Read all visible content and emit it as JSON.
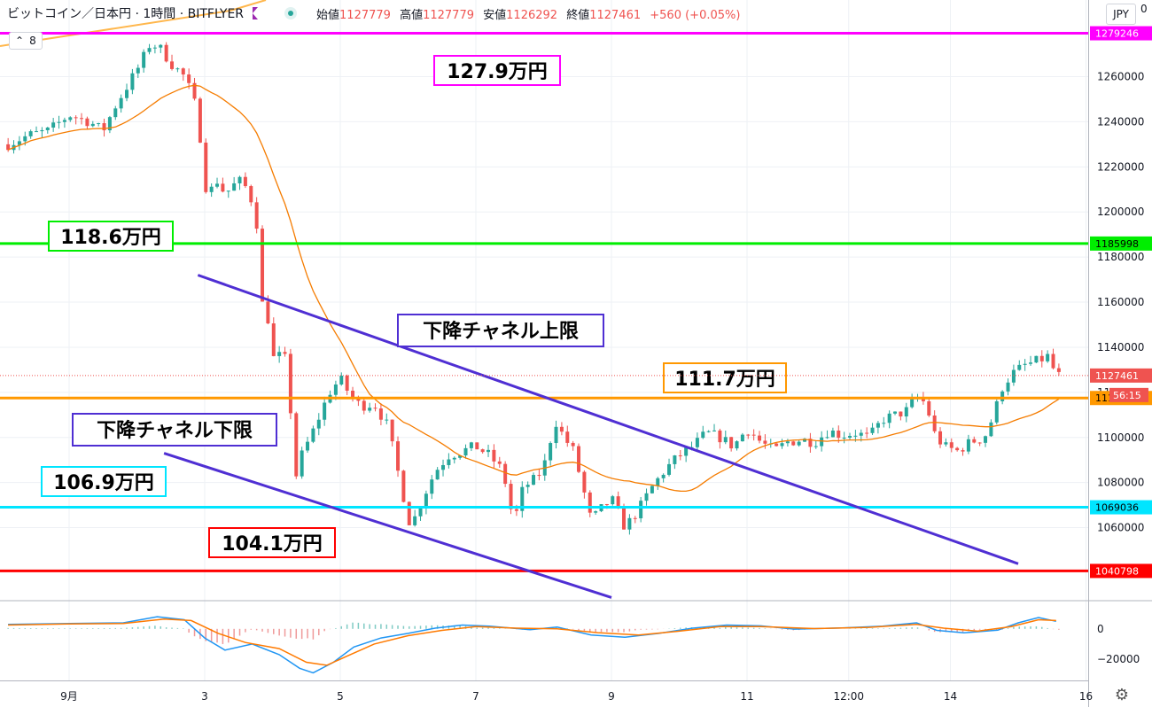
{
  "header": {
    "symbol": "ビットコイン／日本円 · 1時間 · BITFLYER",
    "ohlc": [
      {
        "label": "始値",
        "value": "1127779"
      },
      {
        "label": "高値",
        "value": "1127779"
      },
      {
        "label": "安値",
        "value": "1126292"
      },
      {
        "label": "終値",
        "value": "1127461"
      }
    ],
    "change": "+560 (+0.05%)",
    "indicator_value": "8",
    "currency": "JPY",
    "top_right": "0"
  },
  "colors": {
    "up": "#26a69a",
    "down": "#ef5350",
    "ma": "#f57c00",
    "channel": "#4f2fd3",
    "magenta": "#ff00ff",
    "green": "#00ee00",
    "orange": "#ff9800",
    "cyan": "#00e5ff",
    "red": "#ff0000",
    "macd": "#2196f3",
    "signal": "#ff7a00"
  },
  "chart_data": {
    "type": "candlestick",
    "title": "ビットコイン／日本円 · 1時間 · BITFLYER",
    "ylim": [
      1028000,
      1294000
    ],
    "y_ticks": [
      1060000,
      1080000,
      1100000,
      1120000,
      1140000,
      1160000,
      1180000,
      1200000,
      1220000,
      1240000,
      1260000
    ],
    "x_ticks": [
      {
        "label": "9月",
        "t": 0.0
      },
      {
        "label": "3",
        "t": 1.0
      },
      {
        "label": "5",
        "t": 2.0
      },
      {
        "label": "7",
        "t": 3.0
      },
      {
        "label": "9",
        "t": 4.0
      },
      {
        "label": "11",
        "t": 5.0
      },
      {
        "label": "12:00",
        "t": 5.75
      },
      {
        "label": "14",
        "t": 6.5
      },
      {
        "label": "16",
        "t": 7.5
      }
    ],
    "close_path": [
      [
        -0.45,
        1230000
      ],
      [
        -0.3,
        1234000
      ],
      [
        -0.15,
        1236000
      ],
      [
        0.0,
        1243000
      ],
      [
        0.15,
        1240000
      ],
      [
        0.25,
        1236000
      ],
      [
        0.35,
        1248000
      ],
      [
        0.45,
        1258000
      ],
      [
        0.52,
        1265000
      ],
      [
        0.6,
        1275000
      ],
      [
        0.68,
        1272000
      ],
      [
        0.75,
        1266000
      ],
      [
        0.85,
        1260000
      ],
      [
        0.92,
        1250000
      ],
      [
        0.97,
        1232000
      ],
      [
        1.02,
        1205000
      ],
      [
        1.08,
        1215000
      ],
      [
        1.15,
        1208000
      ],
      [
        1.25,
        1214000
      ],
      [
        1.32,
        1210000
      ],
      [
        1.38,
        1198000
      ],
      [
        1.42,
        1160000
      ],
      [
        1.47,
        1152000
      ],
      [
        1.52,
        1130000
      ],
      [
        1.57,
        1140000
      ],
      [
        1.62,
        1128000
      ],
      [
        1.66,
        1080000
      ],
      [
        1.72,
        1093000
      ],
      [
        1.78,
        1100000
      ],
      [
        1.85,
        1110000
      ],
      [
        1.92,
        1120000
      ],
      [
        2.0,
        1126000
      ],
      [
        2.08,
        1118000
      ],
      [
        2.15,
        1114000
      ],
      [
        2.25,
        1115000
      ],
      [
        2.35,
        1105000
      ],
      [
        2.45,
        1078000
      ],
      [
        2.52,
        1060000
      ],
      [
        2.6,
        1072000
      ],
      [
        2.7,
        1085000
      ],
      [
        2.8,
        1092000
      ],
      [
        2.9,
        1094000
      ],
      [
        3.0,
        1096000
      ],
      [
        3.1,
        1092000
      ],
      [
        3.2,
        1085000
      ],
      [
        3.28,
        1062000
      ],
      [
        3.35,
        1078000
      ],
      [
        3.45,
        1082000
      ],
      [
        3.52,
        1090000
      ],
      [
        3.58,
        1108000
      ],
      [
        3.65,
        1100000
      ],
      [
        3.72,
        1094000
      ],
      [
        3.78,
        1080000
      ],
      [
        3.85,
        1063000
      ],
      [
        3.92,
        1068000
      ],
      [
        4.0,
        1073000
      ],
      [
        4.1,
        1060000
      ],
      [
        4.2,
        1068000
      ],
      [
        4.3,
        1078000
      ],
      [
        4.4,
        1086000
      ],
      [
        4.5,
        1092000
      ],
      [
        4.6,
        1096000
      ],
      [
        4.7,
        1102000
      ],
      [
        4.8,
        1100000
      ],
      [
        4.9,
        1096000
      ],
      [
        5.0,
        1104000
      ],
      [
        5.1,
        1098000
      ],
      [
        5.2,
        1094000
      ],
      [
        5.3,
        1098000
      ],
      [
        5.4,
        1099000
      ],
      [
        5.5,
        1098000
      ],
      [
        5.6,
        1103000
      ],
      [
        5.7,
        1101000
      ],
      [
        5.8,
        1102000
      ],
      [
        5.9,
        1100000
      ],
      [
        6.0,
        1108000
      ],
      [
        6.1,
        1110000
      ],
      [
        6.18,
        1112000
      ],
      [
        6.25,
        1118000
      ],
      [
        6.32,
        1115000
      ],
      [
        6.38,
        1102000
      ],
      [
        6.45,
        1096000
      ],
      [
        6.55,
        1094000
      ],
      [
        6.65,
        1098000
      ],
      [
        6.75,
        1100000
      ],
      [
        6.82,
        1110000
      ],
      [
        6.88,
        1122000
      ],
      [
        6.95,
        1128000
      ],
      [
        7.05,
        1132000
      ],
      [
        7.15,
        1134000
      ],
      [
        7.22,
        1136000
      ],
      [
        7.28,
        1127461
      ]
    ],
    "horizontal_levels": [
      {
        "price": 1279246,
        "label": "127.9万円",
        "axis_label": "1279246",
        "color_key": "magenta"
      },
      {
        "price": 1185998,
        "label": "118.6万円",
        "axis_label": "1185998",
        "color_key": "green"
      },
      {
        "price": 1117491,
        "label": "111.7万円",
        "axis_label": "1117491",
        "color_key": "orange"
      },
      {
        "price": 1069036,
        "label": "106.9万円",
        "axis_label": "1069036",
        "color_key": "cyan"
      },
      {
        "price": 1040798,
        "label": "104.1万円",
        "axis_label": "1040798",
        "color_key": "red"
      }
    ],
    "last_price": {
      "price": 1127461,
      "axis_label": "1127461",
      "countdown": "56:15"
    },
    "channels": [
      {
        "name": "下降チャネル上限",
        "from": [
          0.95,
          1172000
        ],
        "to": [
          7.0,
          1044000
        ]
      },
      {
        "name": "下降チャネル下限",
        "from": [
          0.7,
          1093000
        ],
        "to": [
          4.0,
          1029000
        ]
      }
    ],
    "macd": {
      "ylim": [
        -34000,
        18000
      ],
      "y_ticks": [
        0,
        -20000
      ],
      "macd_path": [
        [
          -0.45,
          3000
        ],
        [
          0.0,
          3500
        ],
        [
          0.4,
          4000
        ],
        [
          0.65,
          8000
        ],
        [
          0.85,
          6000
        ],
        [
          1.0,
          -6000
        ],
        [
          1.15,
          -14000
        ],
        [
          1.35,
          -10000
        ],
        [
          1.55,
          -17000
        ],
        [
          1.7,
          -26000
        ],
        [
          1.8,
          -29000
        ],
        [
          1.95,
          -22000
        ],
        [
          2.1,
          -12000
        ],
        [
          2.3,
          -6000
        ],
        [
          2.5,
          -3000
        ],
        [
          2.7,
          500
        ],
        [
          2.9,
          2500
        ],
        [
          3.1,
          1800
        ],
        [
          3.4,
          -500
        ],
        [
          3.6,
          1200
        ],
        [
          3.85,
          -4000
        ],
        [
          4.1,
          -5500
        ],
        [
          4.35,
          -3000
        ],
        [
          4.6,
          500
        ],
        [
          4.85,
          2500
        ],
        [
          5.1,
          2000
        ],
        [
          5.35,
          -200
        ],
        [
          5.7,
          600
        ],
        [
          6.0,
          1800
        ],
        [
          6.25,
          4000
        ],
        [
          6.4,
          -1000
        ],
        [
          6.6,
          -2600
        ],
        [
          6.85,
          -800
        ],
        [
          7.0,
          4000
        ],
        [
          7.15,
          7500
        ],
        [
          7.28,
          5000
        ]
      ],
      "signal_path": [
        [
          -0.45,
          2500
        ],
        [
          0.0,
          3200
        ],
        [
          0.4,
          3500
        ],
        [
          0.7,
          6500
        ],
        [
          0.9,
          5500
        ],
        [
          1.1,
          -3000
        ],
        [
          1.3,
          -9000
        ],
        [
          1.55,
          -13000
        ],
        [
          1.75,
          -22000
        ],
        [
          1.9,
          -24000
        ],
        [
          2.05,
          -18000
        ],
        [
          2.25,
          -10000
        ],
        [
          2.5,
          -4500
        ],
        [
          2.75,
          -1000
        ],
        [
          3.0,
          1500
        ],
        [
          3.3,
          500
        ],
        [
          3.6,
          0
        ],
        [
          3.9,
          -2500
        ],
        [
          4.2,
          -4000
        ],
        [
          4.5,
          -1500
        ],
        [
          4.8,
          1500
        ],
        [
          5.1,
          1500
        ],
        [
          5.5,
          200
        ],
        [
          5.9,
          1000
        ],
        [
          6.25,
          3000
        ],
        [
          6.45,
          500
        ],
        [
          6.7,
          -1500
        ],
        [
          6.95,
          1500
        ],
        [
          7.15,
          6000
        ],
        [
          7.28,
          5500
        ]
      ]
    }
  }
}
